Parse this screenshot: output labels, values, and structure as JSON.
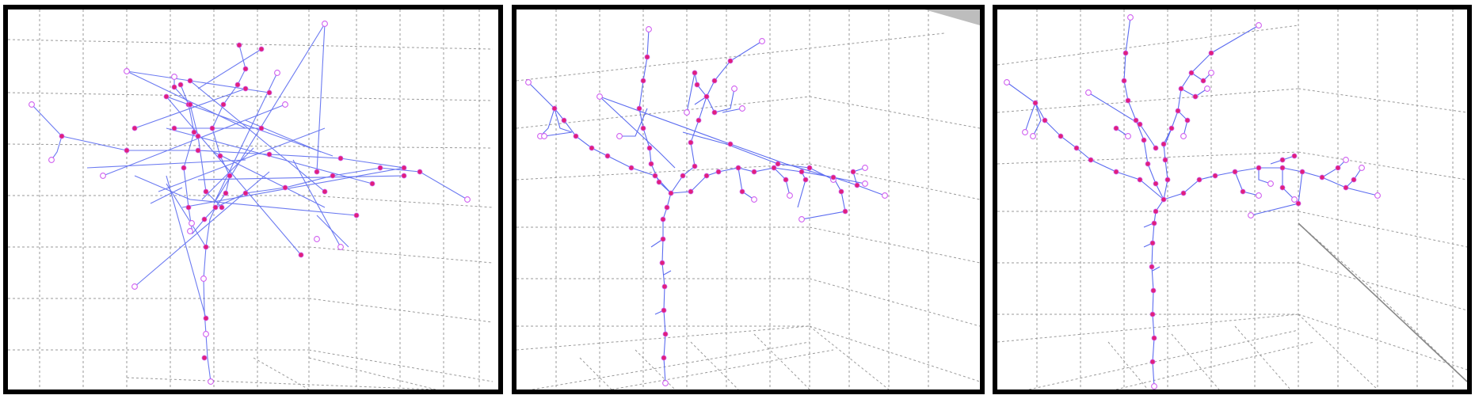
{
  "figure": {
    "colors": {
      "frame": "#000000",
      "grid": "#9a9a9a",
      "edge": "#5c6cf0",
      "node_outline": "#d060f0",
      "node_fill": "#e0207a",
      "corner_shade": "#bdbdbd"
    },
    "panels": [
      {
        "id": "panel-1",
        "description_kind": "tangled-3d-tree",
        "corner_shade": false
      },
      {
        "id": "panel-2",
        "description_kind": "branching-3d-tree",
        "corner_shade": true
      },
      {
        "id": "panel-3",
        "description_kind": "branching-3d-tree",
        "corner_shade": false
      }
    ]
  }
}
